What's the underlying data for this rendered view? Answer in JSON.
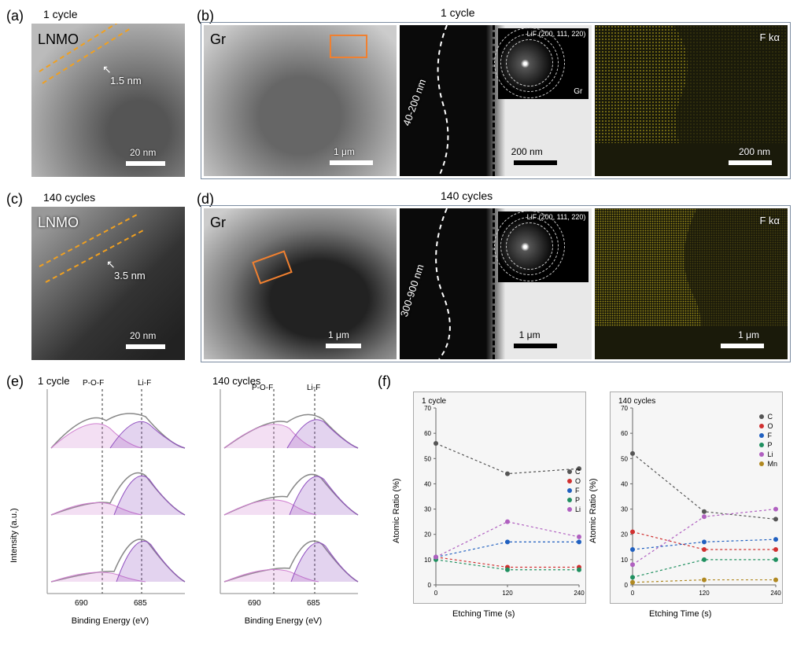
{
  "panels": {
    "a": {
      "label": "(a)",
      "title": "1 cycle",
      "material": "LNMO",
      "thickness": "1.5 nm",
      "scale": "20 nm"
    },
    "b": {
      "label": "(b)",
      "title": "1 cycle",
      "material": "Gr",
      "sei_range": "40-200 nm",
      "saed_label": "LiF (200, 111, 220)",
      "saed_mat": "Gr",
      "eds": "F kα",
      "scale1": "1 μm",
      "scale2": "200 nm",
      "scale3": "200 nm"
    },
    "c": {
      "label": "(c)",
      "title": "140 cycles",
      "material": "LNMO",
      "thickness": "3.5 nm",
      "scale": "20 nm"
    },
    "d": {
      "label": "(d)",
      "title": "140 cycles",
      "material": "Gr",
      "sei_range": "300-900 nm",
      "saed_label": "LiF (200, 111, 220)",
      "eds": "F kα",
      "scale1": "1 μm",
      "scale2": "1 μm",
      "scale3": "1 μm"
    },
    "e": {
      "label": "(e)",
      "title1": "1 cycle",
      "title2": "140 cycles",
      "peak1": "P-O-F",
      "peak2": "Li-F",
      "xlabel": "Binding Energy (eV)",
      "ylabel": "Intensity (a.u.)",
      "xticks": [
        "690",
        "685"
      ]
    },
    "f": {
      "label": "(f)",
      "title1": "1 cycle",
      "title2": "140 cycles",
      "xlabel": "Etching Time (s)",
      "ylabel": "Atomic Ratio (%)",
      "xticks": [
        "0",
        "120",
        "240"
      ],
      "yticks": [
        "0",
        "10",
        "20",
        "30",
        "40",
        "50",
        "60",
        "70"
      ],
      "legend1": [
        {
          "label": "C",
          "color": "#555555"
        },
        {
          "label": "O",
          "color": "#d03030"
        },
        {
          "label": "F",
          "color": "#2060c0"
        },
        {
          "label": "P",
          "color": "#209060"
        },
        {
          "label": "Li",
          "color": "#b060c0"
        }
      ],
      "legend2": [
        {
          "label": "C",
          "color": "#555555"
        },
        {
          "label": "O",
          "color": "#d03030"
        },
        {
          "label": "F",
          "color": "#2060c0"
        },
        {
          "label": "P",
          "color": "#209060"
        },
        {
          "label": "Li",
          "color": "#b060c0"
        },
        {
          "label": "Mn",
          "color": "#b08820"
        }
      ],
      "series1": {
        "x": [
          0,
          120,
          240
        ],
        "C": [
          56,
          44,
          46
        ],
        "O": [
          11,
          7,
          7
        ],
        "F": [
          11,
          17,
          17
        ],
        "P": [
          10,
          6,
          6
        ],
        "Li": [
          11,
          25,
          19
        ]
      },
      "series2": {
        "x": [
          0,
          120,
          240
        ],
        "C": [
          52,
          29,
          26
        ],
        "O": [
          21,
          14,
          14
        ],
        "F": [
          14,
          17,
          18
        ],
        "P": [
          3,
          10,
          10
        ],
        "Li": [
          8,
          27,
          30
        ],
        "Mn": [
          1,
          2,
          2
        ]
      }
    }
  },
  "colors": {
    "eds_yellow": "#e8d020",
    "orange_dash": "#f0a020",
    "orange_rect": "#f08030",
    "xps_purple": "#9050c0",
    "xps_pink": "#d080d0"
  }
}
